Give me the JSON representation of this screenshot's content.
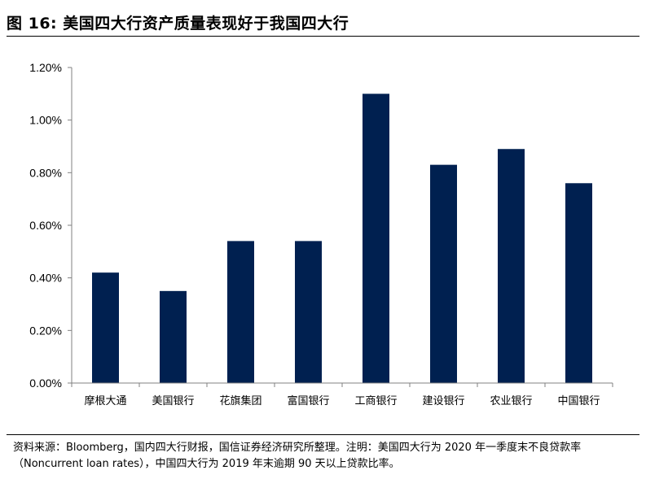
{
  "header": {
    "title": "图 16:  美国四大行资产质量表现好于我国四大行"
  },
  "footer": {
    "source": "资料来源：Bloomberg，国内四大行财报，国信证券经济研究所整理。注明：美国四大行为 2020 年一季度末不良贷款率（Noncurrent loan rates），中国四大行为 2019 年末逾期 90 天以上贷款比率。"
  },
  "colors": {
    "bar": "#002050",
    "axis": "#808080"
  },
  "chart_data": {
    "type": "bar",
    "categories": [
      "摩根大通",
      "美国银行",
      "花旗集团",
      "富国银行",
      "工商银行",
      "建设银行",
      "农业银行",
      "中国银行"
    ],
    "values": [
      0.42,
      0.35,
      0.54,
      0.54,
      1.1,
      0.83,
      0.89,
      0.76
    ],
    "unit": "%",
    "ylim": [
      0,
      1.2
    ],
    "yticks": [
      "0.00%",
      "0.20%",
      "0.40%",
      "0.60%",
      "0.80%",
      "1.00%",
      "1.20%"
    ],
    "ytick_values": [
      0,
      0.2,
      0.4,
      0.6,
      0.8,
      1.0,
      1.2
    ],
    "grid": false,
    "legend": "none"
  }
}
